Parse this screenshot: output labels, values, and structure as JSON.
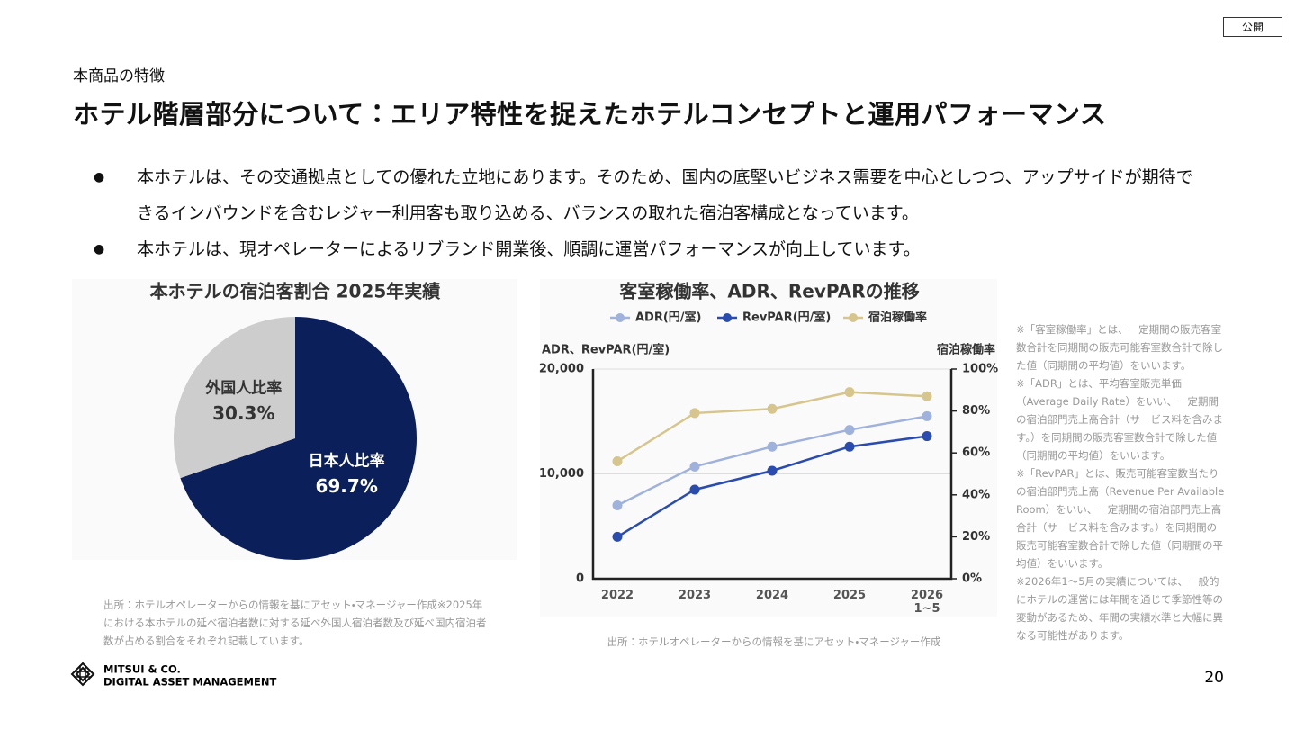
{
  "header": {
    "label": "公開",
    "section": "本商品の特徴",
    "title": "ホテル階層部分について：エリア特性を捉えたホテルコンセプトと運用パフォーマンス"
  },
  "bullets": [
    "本ホテルは、その交通拠点としての優れた立地にあります。そのため、国内の底堅いビジネス需要を中心としつつ、アップサイドが期待できるインバウンドを含むレジャー利用客も取り込める、バランスの取れた宿泊客構成となっています。",
    "本ホテルは、現オペレーターによるリブランド開業後、順調に運営パフォーマンスが向上しています。"
  ],
  "chart_data": [
    {
      "type": "pie",
      "title": "本ホテルの宿泊客割合 2025年実績",
      "categories": [
        "日本人比率",
        "外国人比率"
      ],
      "values": [
        69.7,
        30.3
      ],
      "value_labels": [
        "69.7%",
        "30.3%"
      ],
      "colors": [
        "#0b1f5a",
        "#cdcdcd"
      ],
      "label_colors": [
        "#ffffff",
        "#333333"
      ],
      "source": "出所：ホテルオペレーターからの情報を基にアセット・マネージャー作成※2025年における本ホテルの延べ宿泊者数に対する延べ外国人宿泊者数及び延べ国内宿泊者数が占める割合をそれぞれ記載しています。"
    },
    {
      "type": "line",
      "title": "客室稼働率、ADR、RevPARの推移",
      "y_label": "ADR、RevPAR(円/室)",
      "y2_label": "宿泊稼働率",
      "categories": [
        "2022",
        "2023",
        "2024",
        "2025",
        "2026\n1~5"
      ],
      "series": [
        {
          "name": "ADR(円/室)",
          "color": "#9fb2dc",
          "values": [
            7000,
            10700,
            12600,
            14200,
            15500
          ]
        },
        {
          "name": "RevPAR(円/室)",
          "color": "#2a4caf",
          "values": [
            4000,
            8500,
            10300,
            12600,
            13600
          ]
        },
        {
          "name": "宿泊稼働率",
          "color": "#d6c68e",
          "axis": "y2",
          "values": [
            56,
            79,
            81,
            89,
            87
          ]
        }
      ],
      "ylim": [
        0,
        20000
      ],
      "yticks": [
        0,
        {
          "value": 10000,
          "label": "10,000"
        },
        {
          "value": 20000,
          "label": "20,000"
        }
      ],
      "y2lim": [
        0,
        100
      ],
      "y2ticks": [
        {
          "value": 0,
          "label": "0%"
        },
        {
          "value": 20,
          "label": "20%"
        },
        {
          "value": 40,
          "label": "40%"
        },
        {
          "value": 60,
          "label": "60%"
        },
        {
          "value": 80,
          "label": "80%"
        },
        {
          "value": 100,
          "label": "100%"
        }
      ],
      "grid": true,
      "legend": "top",
      "source": "出所：ホテルオペレーターからの情報を基にアセット・マネージャー作成"
    }
  ],
  "notes": [
    "※「客室稼働率」とは、一定期間の販売客室数合計を同期間の販売可能客室数合計で除した値（同期間の平均値）をいいます。",
    "※「ADR」とは、平均客室販売単価（Average Daily Rate）をいい、一定期間の宿泊部門売上高合計（サービス料を含みます。）を同期間の販売客室数合計で除した値（同期間の平均値）をいいます。",
    "※「RevPAR」とは、販売可能客室数当たりの宿泊部門売上高（Revenue Per Available Room）をいい、一定期間の宿泊部門売上高合計（サービス料を含みます。）を同期間の販売可能客室数合計で除した値（同期間の平均値）をいいます。",
    "※2026年1～5月の実績については、一般的にホテルの運営には年間を通じて季節性等の変動があるため、年間の実績水準と大幅に異なる可能性があります。"
  ],
  "footer": {
    "logo_lines": [
      "MITSUI & CO.",
      "DIGITAL ASSET MANAGEMENT"
    ],
    "page": "20"
  }
}
